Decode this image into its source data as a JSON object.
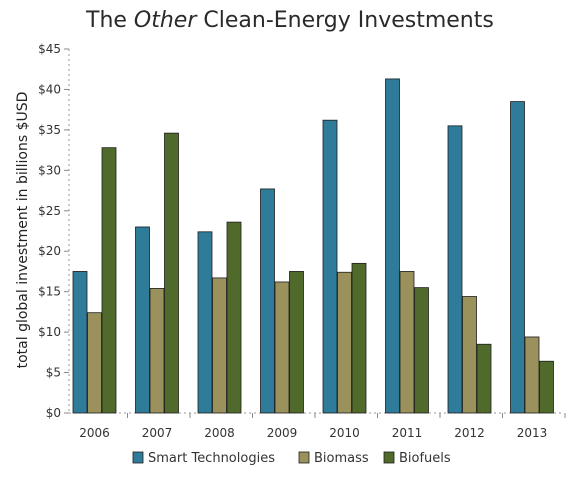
{
  "chart_data": {
    "type": "bar",
    "title_prefix": "The ",
    "title_emphasis": "Other",
    "title_suffix": " Clean-Energy Investments",
    "ylabel": "total global investment in billions $USD",
    "xlabel": "",
    "categories": [
      "2006",
      "2007",
      "2008",
      "2009",
      "2010",
      "2011",
      "2012",
      "2013"
    ],
    "ylim": [
      0,
      45
    ],
    "yticks": [
      0,
      5,
      10,
      15,
      20,
      25,
      30,
      35,
      40,
      45
    ],
    "ytick_labels": [
      "$0",
      "$5",
      "$10",
      "$15",
      "$20",
      "$25",
      "$30",
      "$35",
      "$40",
      "$45"
    ],
    "grid": false,
    "legend_position": "bottom",
    "series": [
      {
        "name": "Smart Technologies",
        "color": "#2e7b9a",
        "values": [
          17.5,
          23.0,
          22.4,
          27.7,
          36.2,
          41.3,
          35.5,
          38.5
        ]
      },
      {
        "name": "Biomass",
        "color": "#9a915c",
        "values": [
          12.4,
          15.4,
          16.7,
          16.2,
          17.4,
          17.5,
          14.4,
          9.4
        ]
      },
      {
        "name": "Biofuels",
        "color": "#4f6a2a",
        "values": [
          32.8,
          34.6,
          23.6,
          17.5,
          18.5,
          15.5,
          8.5,
          6.4
        ]
      }
    ]
  }
}
